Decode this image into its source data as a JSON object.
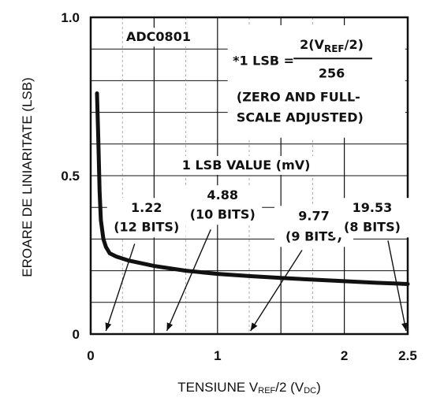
{
  "chart_data": {
    "type": "line",
    "xlabel": {
      "main": "TENSIUNE V",
      "sub1": "REF",
      "mid": "/2 (V",
      "sub2": "DC",
      "end": ")"
    },
    "ylabel": "EROARE DE LINIARITATE (LSB)",
    "xlim": [
      0,
      2.5
    ],
    "ylim": [
      0,
      1.0
    ],
    "x_ticks": [
      "0",
      "1",
      "2",
      "2.5"
    ],
    "y_ticks": [
      "0",
      "0.5",
      "1.0"
    ],
    "grid": true,
    "series": [
      {
        "x": [
          0.05,
          0.06,
          0.07,
          0.08,
          0.1,
          0.12,
          0.15,
          0.2,
          0.3,
          0.5,
          0.75,
          1.0,
          1.25,
          1.5,
          1.75,
          2.0,
          2.25,
          2.5
        ],
        "y": [
          0.76,
          0.62,
          0.45,
          0.36,
          0.3,
          0.275,
          0.255,
          0.245,
          0.232,
          0.215,
          0.2,
          0.19,
          0.183,
          0.177,
          0.172,
          0.167,
          0.162,
          0.158
        ]
      }
    ],
    "annotations": {
      "device": "ADC0801",
      "formula_prefix": "*1 LSB =",
      "formula_numerator": "2(V",
      "formula_sub": "REF",
      "formula_num_end": "/2)",
      "formula_denominator": "256",
      "note_line1": "(ZERO AND FULL-",
      "note_line2": "SCALE ADJUSTED)",
      "lsb_title": "1 LSB VALUE (mV)",
      "markers": [
        {
          "value": "1.22",
          "bits": "(12 BITS)",
          "x_arrow": 0.3125
        },
        {
          "value": "4.88",
          "bits": "(10 BITS)",
          "x_arrow": 1.25
        },
        {
          "value": "9.77",
          "bits": "(9 BITS)",
          "x_arrow": 2.5
        },
        {
          "value": "19.53",
          "bits": "(8 BITS)",
          "x_arrow": 5.0
        }
      ]
    }
  }
}
